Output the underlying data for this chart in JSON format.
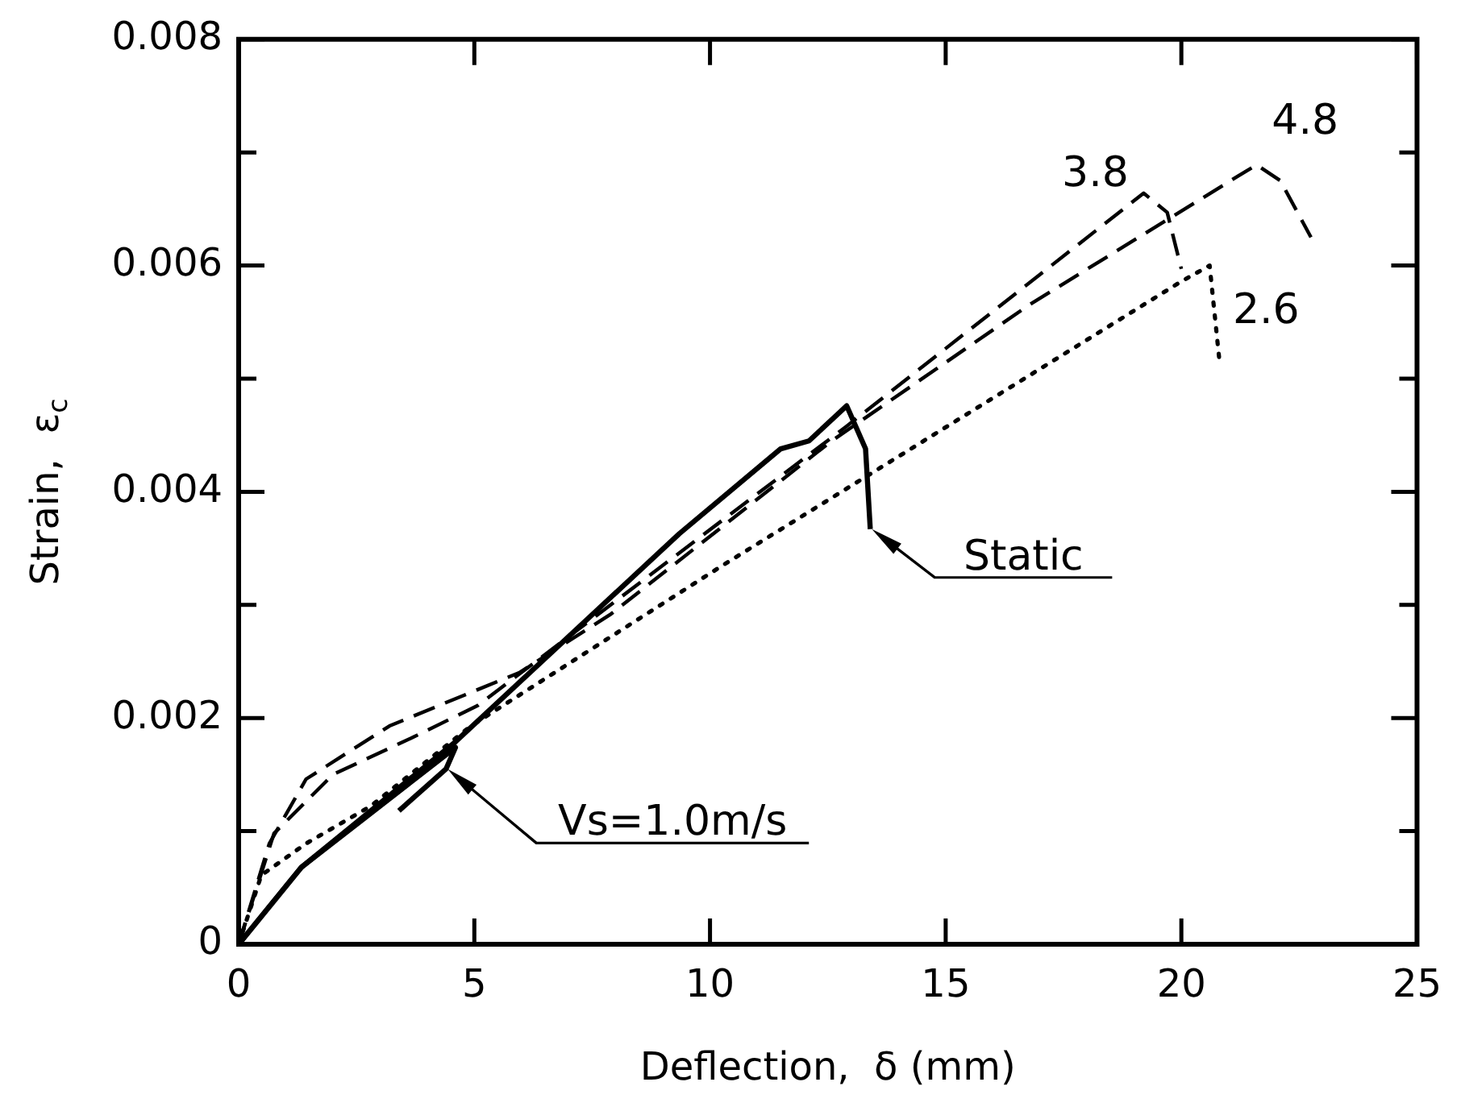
{
  "chart_data": {
    "type": "line",
    "xlabel": "Deflection,  δ (mm)",
    "ylabel": "Strain,  ε$_{c}$",
    "xlim": [
      0,
      25
    ],
    "xticks": [
      0,
      5,
      10,
      15,
      20,
      25
    ],
    "ylim": [
      0,
      0.008
    ],
    "yticks": [
      0,
      {
        "value": 0.001,
        "label": null
      },
      {
        "value": 0.002,
        "label": "0.002"
      },
      {
        "value": 0.003,
        "label": null
      },
      {
        "value": 0.004,
        "label": "0.004"
      },
      {
        "value": 0.005,
        "label": null
      },
      {
        "value": 0.006,
        "label": "0.006"
      },
      {
        "value": 0.007,
        "label": null
      },
      {
        "value": 0.008,
        "label": "0.008"
      }
    ],
    "marker": "none",
    "legend": false,
    "series": [
      {
        "name": "Static",
        "color": "#000000",
        "line_style": "solid",
        "x": [
          0,
          1.33,
          4.6,
          9.35,
          11.5,
          12.1,
          12.9,
          13.3,
          13.4
        ],
        "values": [
          0,
          0.00068,
          0.00179,
          0.00363,
          0.00438,
          0.00445,
          0.00476,
          0.00438,
          0.00367
        ]
      },
      {
        "name": "Vs=1.0m/s",
        "color": "#000000",
        "line_style": "solid",
        "x": [
          0,
          1.33,
          4.6,
          4.4,
          3.4
        ],
        "values": [
          0,
          0.00068,
          0.00174,
          0.00155,
          0.00118
        ]
      },
      {
        "name": "2.6",
        "color": "#000000",
        "line_style": "dotted",
        "x": [
          0,
          0.48,
          1.43,
          2.8,
          4.93,
          10.27,
          20.0,
          20.6,
          20.8
        ],
        "values": [
          0,
          0.00061,
          0.00089,
          0.00122,
          0.00193,
          0.00335,
          0.00586,
          0.006,
          0.00519
        ]
      },
      {
        "name": "3.8",
        "color": "#000000",
        "line_style": "dashed",
        "x": [
          0,
          0.75,
          2.0,
          3.7,
          5.07,
          12.9,
          19.2,
          19.7,
          20.0
        ],
        "values": [
          0,
          0.00098,
          0.0015,
          0.00183,
          0.00211,
          0.00458,
          0.00664,
          0.00647,
          0.00597
        ]
      },
      {
        "name": "4.8",
        "color": "#000000",
        "line_style": "dashed",
        "x": [
          0,
          0.65,
          1.43,
          3.2,
          4.83,
          5.95,
          7.9,
          12.55,
          16.8,
          21.2,
          21.6,
          22.1,
          22.75
        ],
        "values": [
          0,
          0.00089,
          0.00146,
          0.00193,
          0.00221,
          0.0024,
          0.00292,
          0.00444,
          0.00566,
          0.00679,
          0.00689,
          0.00675,
          0.00625
        ]
      }
    ]
  }
}
